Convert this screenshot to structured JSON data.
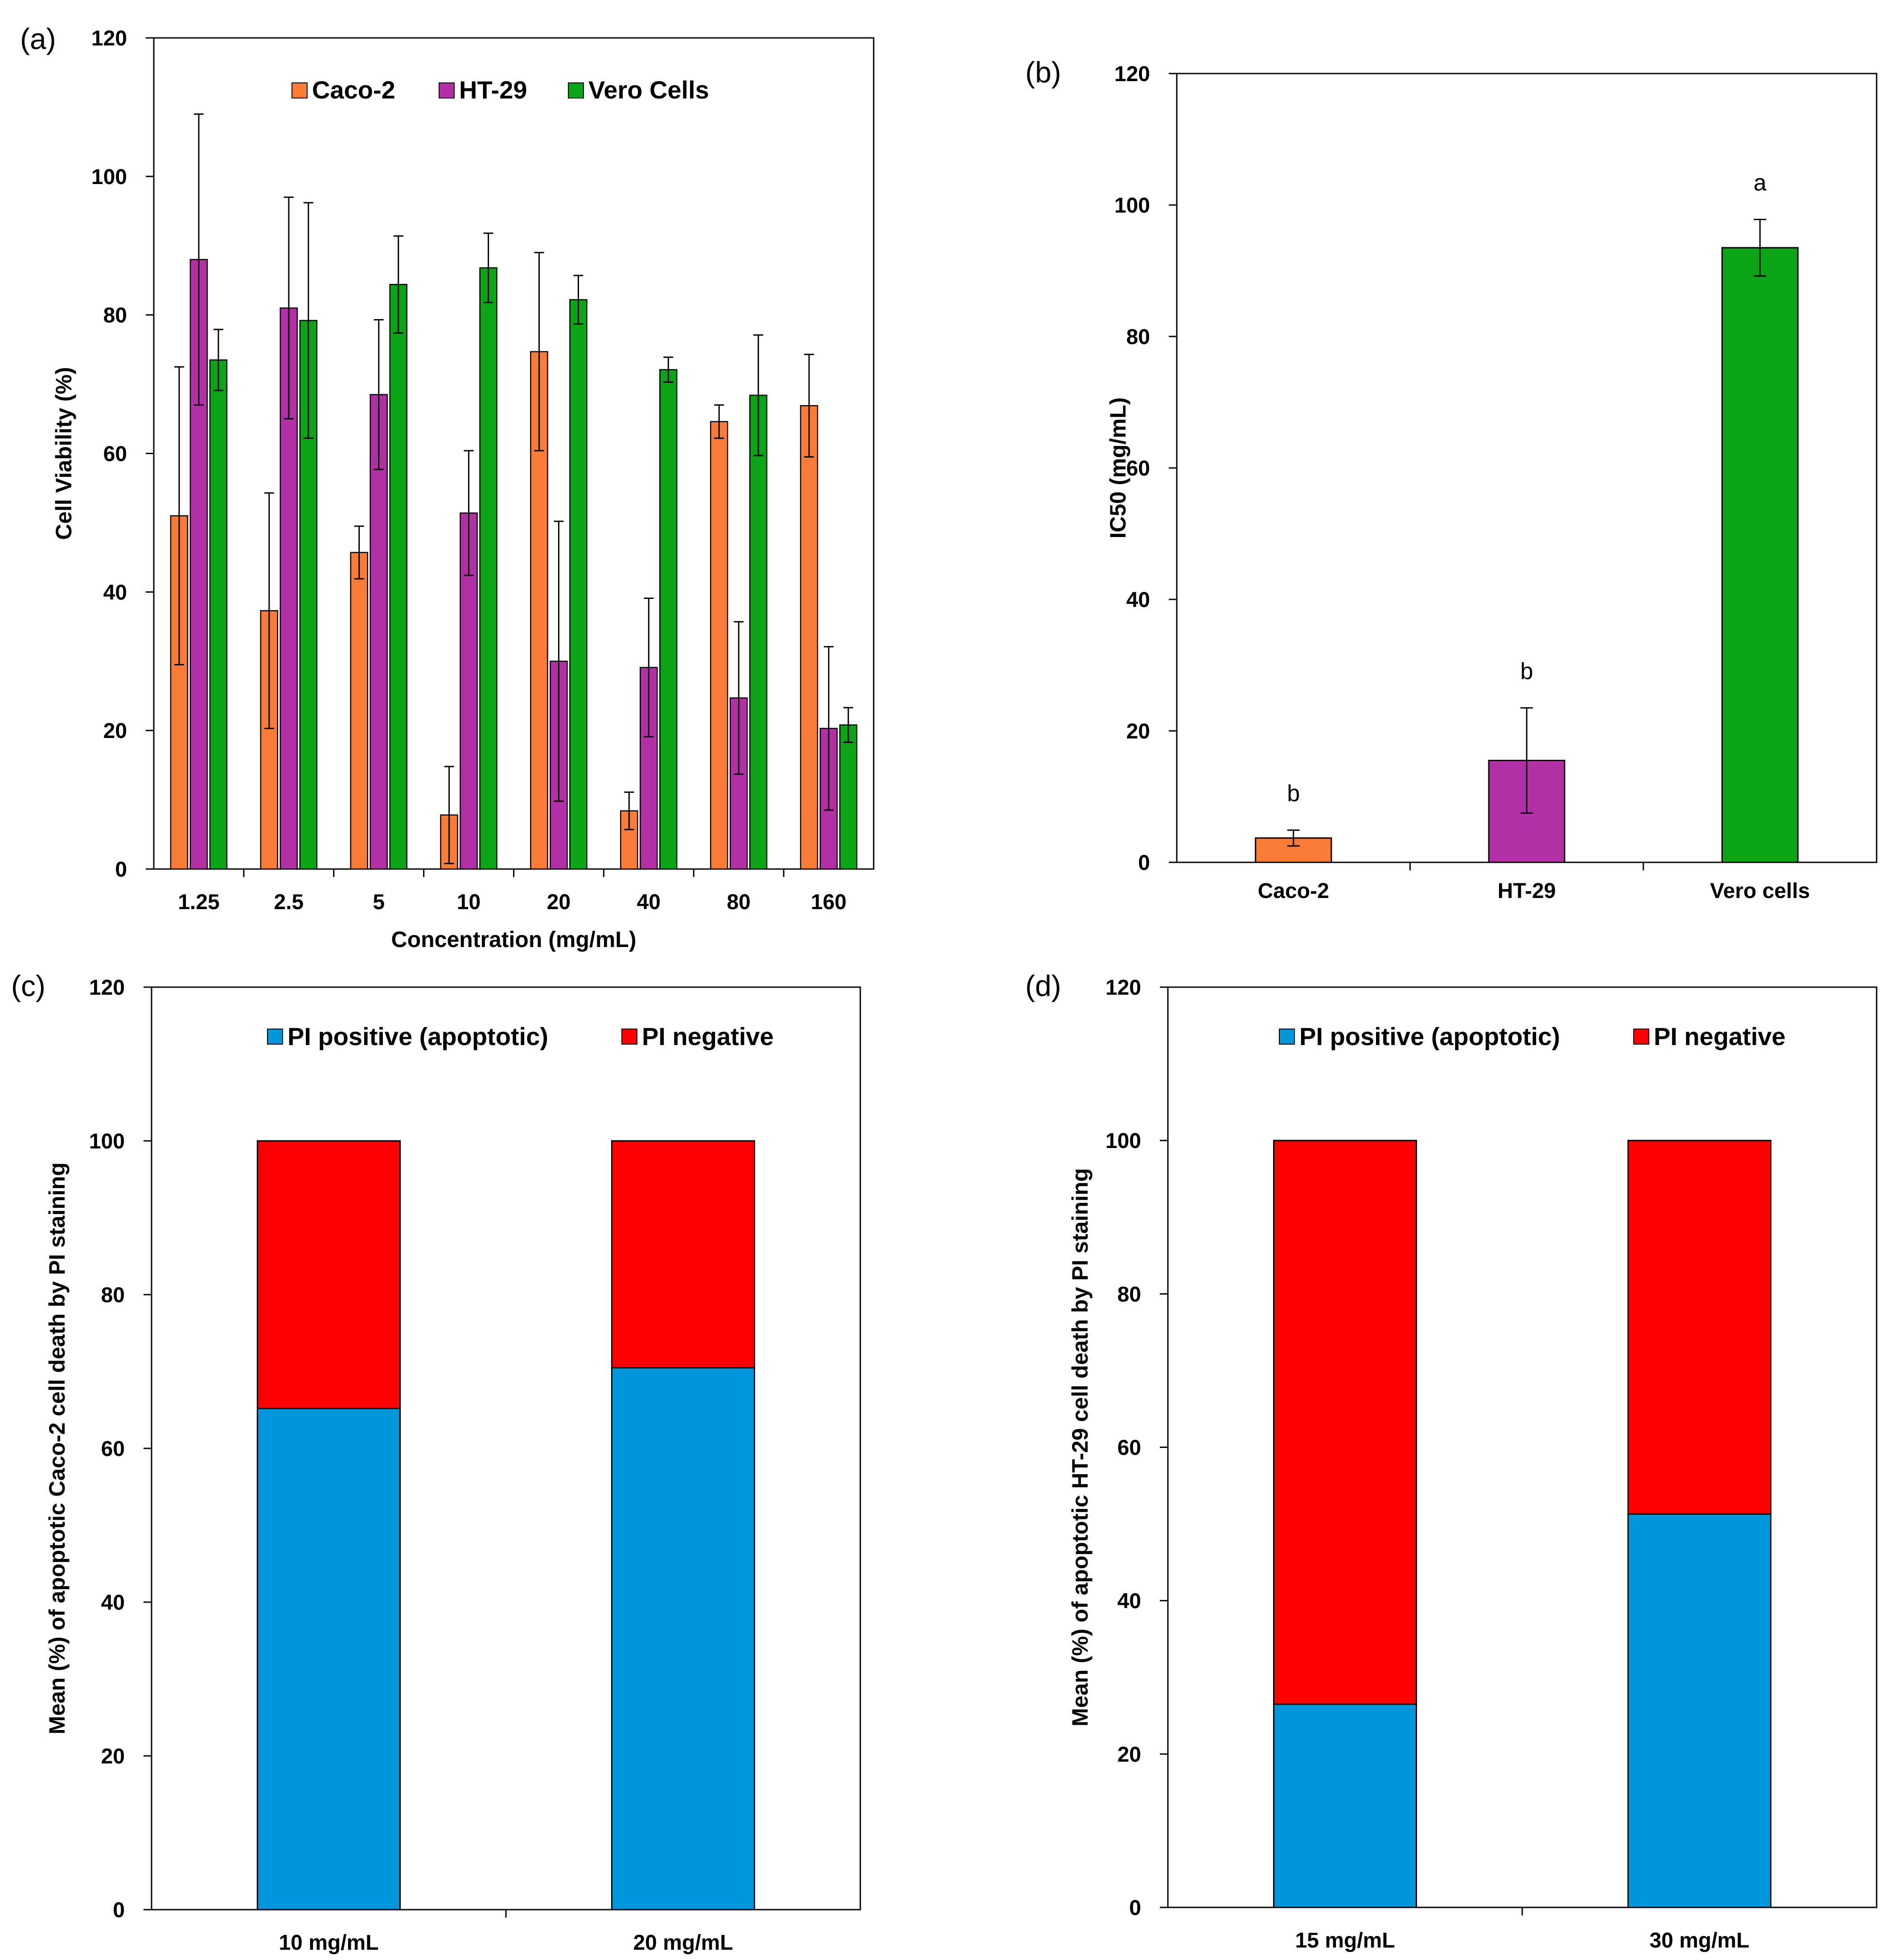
{
  "chart_data": [
    {
      "panel_label": "(a)",
      "type": "bar",
      "xlabel": "Concentration (mg/mL)",
      "ylabel": "Cell Viability (%)",
      "ylim": [
        0,
        120
      ],
      "yticks": [
        0,
        20,
        40,
        60,
        80,
        100,
        120
      ],
      "categories": [
        "1.25",
        "2.5",
        "5",
        "10",
        "20",
        "40",
        "80",
        "160"
      ],
      "legend_position": "top-center",
      "series": [
        {
          "name": "Caco-2",
          "color": "#F97B35",
          "values": [
            51,
            37.3,
            45.7,
            7.8,
            74.7,
            8.4,
            64.6,
            66.9
          ],
          "errors": [
            21.5,
            17,
            3.8,
            7,
            14.3,
            2.7,
            2.4,
            7.4
          ]
        },
        {
          "name": "HT-29",
          "color": "#B32FA6",
          "values": [
            88,
            81,
            68.5,
            51.4,
            30,
            29.1,
            24.7,
            20.3
          ],
          "errors": [
            21,
            16,
            10.8,
            9,
            20.2,
            10,
            11,
            11.8
          ]
        },
        {
          "name": "Vero Cells",
          "color": "#0AA414",
          "values": [
            73.5,
            79.2,
            84.4,
            86.8,
            82.2,
            72.1,
            68.4,
            20.8
          ],
          "errors": [
            4.4,
            17,
            7,
            5,
            3.5,
            1.8,
            8.7,
            2.5
          ]
        }
      ]
    },
    {
      "panel_label": "(b)",
      "type": "bar",
      "xlabel": "",
      "ylabel": "IC50 (mg/mL)",
      "ylim": [
        0,
        120
      ],
      "yticks": [
        0,
        20,
        40,
        60,
        80,
        100,
        120
      ],
      "categories": [
        "Caco-2",
        "HT-29",
        "Vero cells"
      ],
      "values": [
        3.7,
        15.5,
        93.5
      ],
      "errors": [
        1.2,
        8,
        4.3
      ],
      "colors": [
        "#F97B35",
        "#B32FA6",
        "#0AA414"
      ],
      "annotations": [
        "b",
        "b",
        "a"
      ]
    },
    {
      "panel_label": "(c)",
      "type": "bar",
      "stacked": true,
      "xlabel": "",
      "ylabel": "Mean (%) of apoptotic Caco-2 cell death by PI staining",
      "ylim": [
        0,
        120
      ],
      "yticks": [
        0,
        20,
        40,
        60,
        80,
        100,
        120
      ],
      "categories": [
        "10 mg/mL",
        "20 mg/mL"
      ],
      "legend_position": "top-center",
      "series": [
        {
          "name": "PI positive (apoptotic)",
          "color": "#0096DC",
          "values": [
            65.2,
            70.5
          ]
        },
        {
          "name": "PI negative",
          "color": "#FF0000",
          "values": [
            34.8,
            29.5
          ]
        }
      ]
    },
    {
      "panel_label": "(d)",
      "type": "bar",
      "stacked": true,
      "xlabel": "",
      "ylabel": "Mean (%) of apoptotic HT-29 cell death by PI staining",
      "ylim": [
        0,
        120
      ],
      "yticks": [
        0,
        20,
        40,
        60,
        80,
        100,
        120
      ],
      "categories": [
        "15 mg/mL",
        "30 mg/mL"
      ],
      "legend_position": "top-center",
      "series": [
        {
          "name": "PI positive (apoptotic)",
          "color": "#0096DC",
          "values": [
            26.5,
            51.3
          ]
        },
        {
          "name": "PI negative",
          "color": "#FF0000",
          "values": [
            73.5,
            48.7
          ]
        }
      ]
    }
  ]
}
